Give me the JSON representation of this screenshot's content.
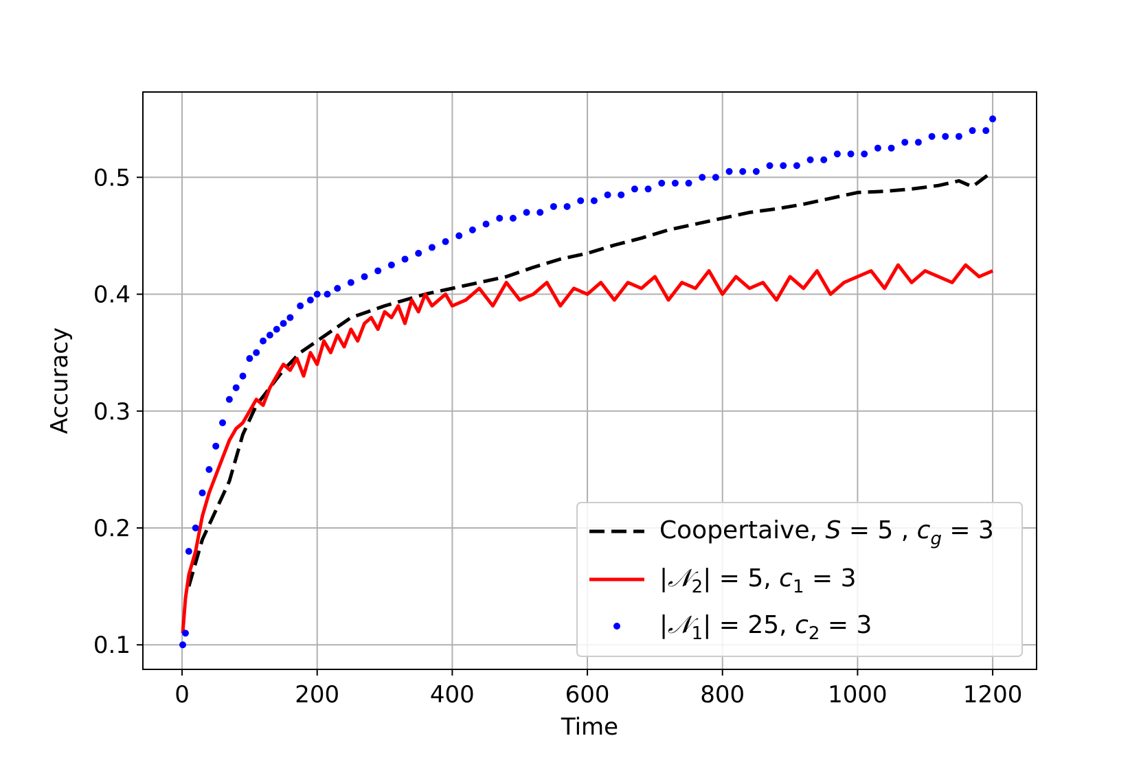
{
  "chart_data": {
    "type": "line",
    "xlabel": "Time",
    "ylabel": "Accuracy",
    "xlim": [
      -58,
      1265
    ],
    "ylim": [
      0.079,
      0.573
    ],
    "xticks": [
      0,
      200,
      400,
      600,
      800,
      1000,
      1200
    ],
    "xtick_labels": [
      "0",
      "200",
      "400",
      "600",
      "800",
      "1000",
      "1200"
    ],
    "yticks": [
      0.1,
      0.2,
      0.3,
      0.4,
      0.5
    ],
    "ytick_labels": [
      "0.1",
      "0.2",
      "0.3",
      "0.4",
      "0.5"
    ],
    "grid": true,
    "legend_position": "lower-right",
    "series": [
      {
        "name": "Coopertaive, S = 5 , c_g = 3",
        "legend_parts": [
          "Coopertaive, ",
          "S",
          " = 5 , ",
          "c",
          "g",
          " = 3"
        ],
        "style": "dashed",
        "color": "#000000",
        "x": [
          10,
          30,
          50,
          70,
          90,
          110,
          130,
          150,
          175,
          200,
          225,
          250,
          275,
          300,
          330,
          360,
          400,
          440,
          480,
          520,
          560,
          600,
          640,
          680,
          720,
          760,
          800,
          840,
          880,
          920,
          960,
          1000,
          1040,
          1080,
          1120,
          1150,
          1170,
          1200
        ],
        "y": [
          0.15,
          0.19,
          0.215,
          0.24,
          0.28,
          0.305,
          0.32,
          0.335,
          0.35,
          0.36,
          0.37,
          0.38,
          0.385,
          0.39,
          0.395,
          0.4,
          0.405,
          0.41,
          0.415,
          0.423,
          0.43,
          0.435,
          0.442,
          0.448,
          0.455,
          0.46,
          0.465,
          0.47,
          0.473,
          0.477,
          0.482,
          0.487,
          0.488,
          0.49,
          0.493,
          0.497,
          0.492,
          0.505
        ]
      },
      {
        "name": "|N_2| = 5, c_1 = 3",
        "legend_parts": [
          "|",
          "𝒩",
          "2",
          "| = 5, ",
          "c",
          "1",
          " = 3"
        ],
        "style": "solid",
        "color": "#ff0000",
        "x": [
          1,
          5,
          10,
          20,
          30,
          40,
          50,
          60,
          70,
          80,
          90,
          100,
          110,
          120,
          130,
          140,
          150,
          160,
          170,
          180,
          190,
          200,
          210,
          220,
          230,
          240,
          250,
          260,
          270,
          280,
          290,
          300,
          310,
          320,
          330,
          340,
          350,
          360,
          370,
          380,
          390,
          400,
          420,
          440,
          460,
          480,
          500,
          520,
          540,
          560,
          580,
          600,
          620,
          640,
          660,
          680,
          700,
          720,
          740,
          760,
          780,
          800,
          820,
          840,
          860,
          880,
          900,
          920,
          940,
          960,
          980,
          1000,
          1020,
          1040,
          1060,
          1080,
          1100,
          1120,
          1140,
          1160,
          1180,
          1200
        ],
        "y": [
          0.11,
          0.14,
          0.16,
          0.18,
          0.21,
          0.23,
          0.245,
          0.26,
          0.275,
          0.285,
          0.29,
          0.3,
          0.31,
          0.305,
          0.32,
          0.33,
          0.34,
          0.335,
          0.345,
          0.33,
          0.35,
          0.34,
          0.36,
          0.35,
          0.365,
          0.355,
          0.37,
          0.36,
          0.375,
          0.38,
          0.37,
          0.385,
          0.38,
          0.39,
          0.375,
          0.395,
          0.385,
          0.4,
          0.39,
          0.395,
          0.4,
          0.39,
          0.395,
          0.405,
          0.39,
          0.41,
          0.395,
          0.4,
          0.41,
          0.39,
          0.405,
          0.4,
          0.41,
          0.395,
          0.41,
          0.405,
          0.415,
          0.395,
          0.41,
          0.405,
          0.42,
          0.4,
          0.415,
          0.405,
          0.41,
          0.395,
          0.415,
          0.405,
          0.42,
          0.4,
          0.41,
          0.415,
          0.42,
          0.405,
          0.425,
          0.41,
          0.42,
          0.415,
          0.41,
          0.425,
          0.415,
          0.42
        ]
      },
      {
        "name": "|N_1| = 25, c_2 = 3",
        "legend_parts": [
          "|",
          "𝒩",
          "1",
          "| = 25, ",
          "c",
          "2",
          " = 3"
        ],
        "style": "dots",
        "color": "#0000ff",
        "x": [
          1,
          5,
          10,
          20,
          30,
          40,
          50,
          60,
          70,
          80,
          90,
          100,
          110,
          120,
          130,
          140,
          150,
          160,
          175,
          190,
          200,
          215,
          230,
          250,
          270,
          290,
          310,
          330,
          350,
          370,
          390,
          410,
          430,
          450,
          470,
          490,
          510,
          530,
          550,
          570,
          590,
          610,
          630,
          650,
          670,
          690,
          710,
          730,
          750,
          770,
          790,
          810,
          830,
          850,
          870,
          890,
          910,
          930,
          950,
          970,
          990,
          1010,
          1030,
          1050,
          1070,
          1090,
          1110,
          1130,
          1150,
          1170,
          1190,
          1200
        ],
        "y": [
          0.1,
          0.11,
          0.18,
          0.2,
          0.23,
          0.25,
          0.27,
          0.29,
          0.31,
          0.32,
          0.33,
          0.345,
          0.35,
          0.36,
          0.365,
          0.37,
          0.375,
          0.38,
          0.39,
          0.395,
          0.4,
          0.4,
          0.405,
          0.41,
          0.415,
          0.42,
          0.425,
          0.43,
          0.435,
          0.44,
          0.445,
          0.45,
          0.455,
          0.46,
          0.465,
          0.465,
          0.47,
          0.47,
          0.475,
          0.475,
          0.48,
          0.48,
          0.485,
          0.485,
          0.49,
          0.49,
          0.495,
          0.495,
          0.495,
          0.5,
          0.5,
          0.505,
          0.505,
          0.505,
          0.51,
          0.51,
          0.51,
          0.515,
          0.515,
          0.52,
          0.52,
          0.52,
          0.525,
          0.525,
          0.53,
          0.53,
          0.535,
          0.535,
          0.535,
          0.54,
          0.54,
          0.55
        ]
      }
    ]
  }
}
